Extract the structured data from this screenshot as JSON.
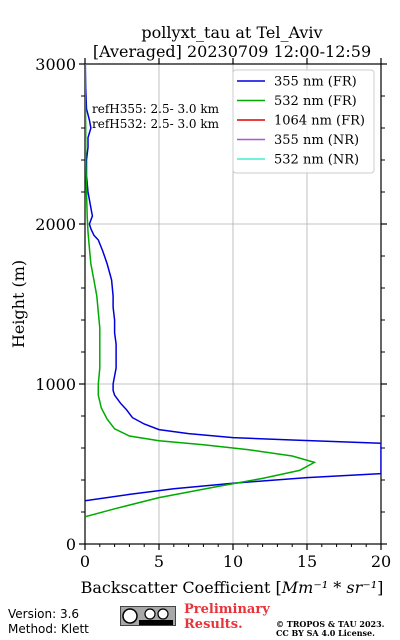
{
  "chart_data": {
    "type": "line",
    "title": "pollyxt_tau at Tel_Aviv",
    "subtitle": "[Averaged] 20230709 12:00-12:59",
    "xlabel_prefix": "Backscatter Coefficient [",
    "xlabel_math": "Mm⁻¹ * sr⁻¹",
    "xlabel_suffix": "]",
    "ylabel": "Height (m)",
    "xlim": [
      0,
      20
    ],
    "ylim": [
      0,
      3000
    ],
    "xticks": [
      0,
      5,
      10,
      15,
      20
    ],
    "yticks": [
      0,
      1000,
      2000,
      3000
    ],
    "grid": true,
    "legend_position": "top-right",
    "annotations": [
      "refH355:  2.5- 3.0 km",
      "refH532:  2.5- 3.0 km"
    ],
    "series": [
      {
        "name": "355 nm (FR)",
        "color": "#0000dd",
        "points": [
          [
            0,
            270
          ],
          [
            3,
            310
          ],
          [
            6,
            345
          ],
          [
            10,
            380
          ],
          [
            15,
            415
          ],
          [
            20,
            440
          ],
          [
            20,
            630
          ],
          [
            14,
            650
          ],
          [
            10,
            665
          ],
          [
            7,
            690
          ],
          [
            5,
            715
          ],
          [
            4,
            750
          ],
          [
            3.2,
            790
          ],
          [
            2.8,
            840
          ],
          [
            2.4,
            880
          ],
          [
            2.0,
            930
          ],
          [
            1.9,
            960
          ],
          [
            1.9,
            1000
          ],
          [
            2.0,
            1050
          ],
          [
            2.1,
            1100
          ],
          [
            2.1,
            1150
          ],
          [
            2.1,
            1250
          ],
          [
            2.0,
            1320
          ],
          [
            2.0,
            1400
          ],
          [
            1.9,
            1480
          ],
          [
            1.9,
            1550
          ],
          [
            1.8,
            1650
          ],
          [
            1.5,
            1750
          ],
          [
            1.2,
            1830
          ],
          [
            0.9,
            1900
          ],
          [
            0.6,
            1930
          ],
          [
            0.4,
            1970
          ],
          [
            0.3,
            2000
          ],
          [
            0.5,
            2050
          ],
          [
            0.4,
            2100
          ],
          [
            0.2,
            2200
          ],
          [
            0.1,
            2300
          ],
          [
            0.1,
            2400
          ],
          [
            0.2,
            2480
          ],
          [
            0.2,
            2540
          ],
          [
            0.4,
            2600
          ],
          [
            0.3,
            2650
          ],
          [
            0.1,
            2720
          ],
          [
            0.05,
            2850
          ],
          [
            0.02,
            3000
          ]
        ]
      },
      {
        "name": "532 nm (FR)",
        "color": "#00aa00",
        "points": [
          [
            0,
            170
          ],
          [
            2,
            220
          ],
          [
            5,
            290
          ],
          [
            9,
            360
          ],
          [
            12,
            410
          ],
          [
            14.5,
            460
          ],
          [
            15.5,
            510
          ],
          [
            14,
            550
          ],
          [
            11,
            590
          ],
          [
            8,
            620
          ],
          [
            5,
            645
          ],
          [
            3,
            675
          ],
          [
            2,
            720
          ],
          [
            1.5,
            780
          ],
          [
            1.1,
            850
          ],
          [
            0.9,
            930
          ],
          [
            0.9,
            1000
          ],
          [
            1.0,
            1100
          ],
          [
            1.0,
            1250
          ],
          [
            1.0,
            1350
          ],
          [
            0.9,
            1450
          ],
          [
            0.8,
            1550
          ],
          [
            0.6,
            1650
          ],
          [
            0.4,
            1750
          ],
          [
            0.3,
            1850
          ],
          [
            0.2,
            1950
          ],
          [
            0.15,
            2050
          ],
          [
            0.1,
            2200
          ],
          [
            0.05,
            2400
          ],
          [
            0.05,
            2600
          ],
          [
            0.02,
            2800
          ],
          [
            0.02,
            3000
          ]
        ]
      },
      {
        "name": "1064 nm (FR)",
        "color": "#dd0000",
        "points": []
      },
      {
        "name": "355 nm (NR)",
        "color": "#aa55dd",
        "points": []
      },
      {
        "name": "532 nm (NR)",
        "color": "#44eecc",
        "points": []
      }
    ]
  },
  "footer": {
    "version": "Version: 3.6",
    "method": "Method: Klett",
    "preliminary_line1": "Preliminary",
    "preliminary_line2": "Results.",
    "copyright_line1": "© TROPOS & TAU 2023.",
    "copyright_line2": "CC BY SA 4.0 License."
  }
}
